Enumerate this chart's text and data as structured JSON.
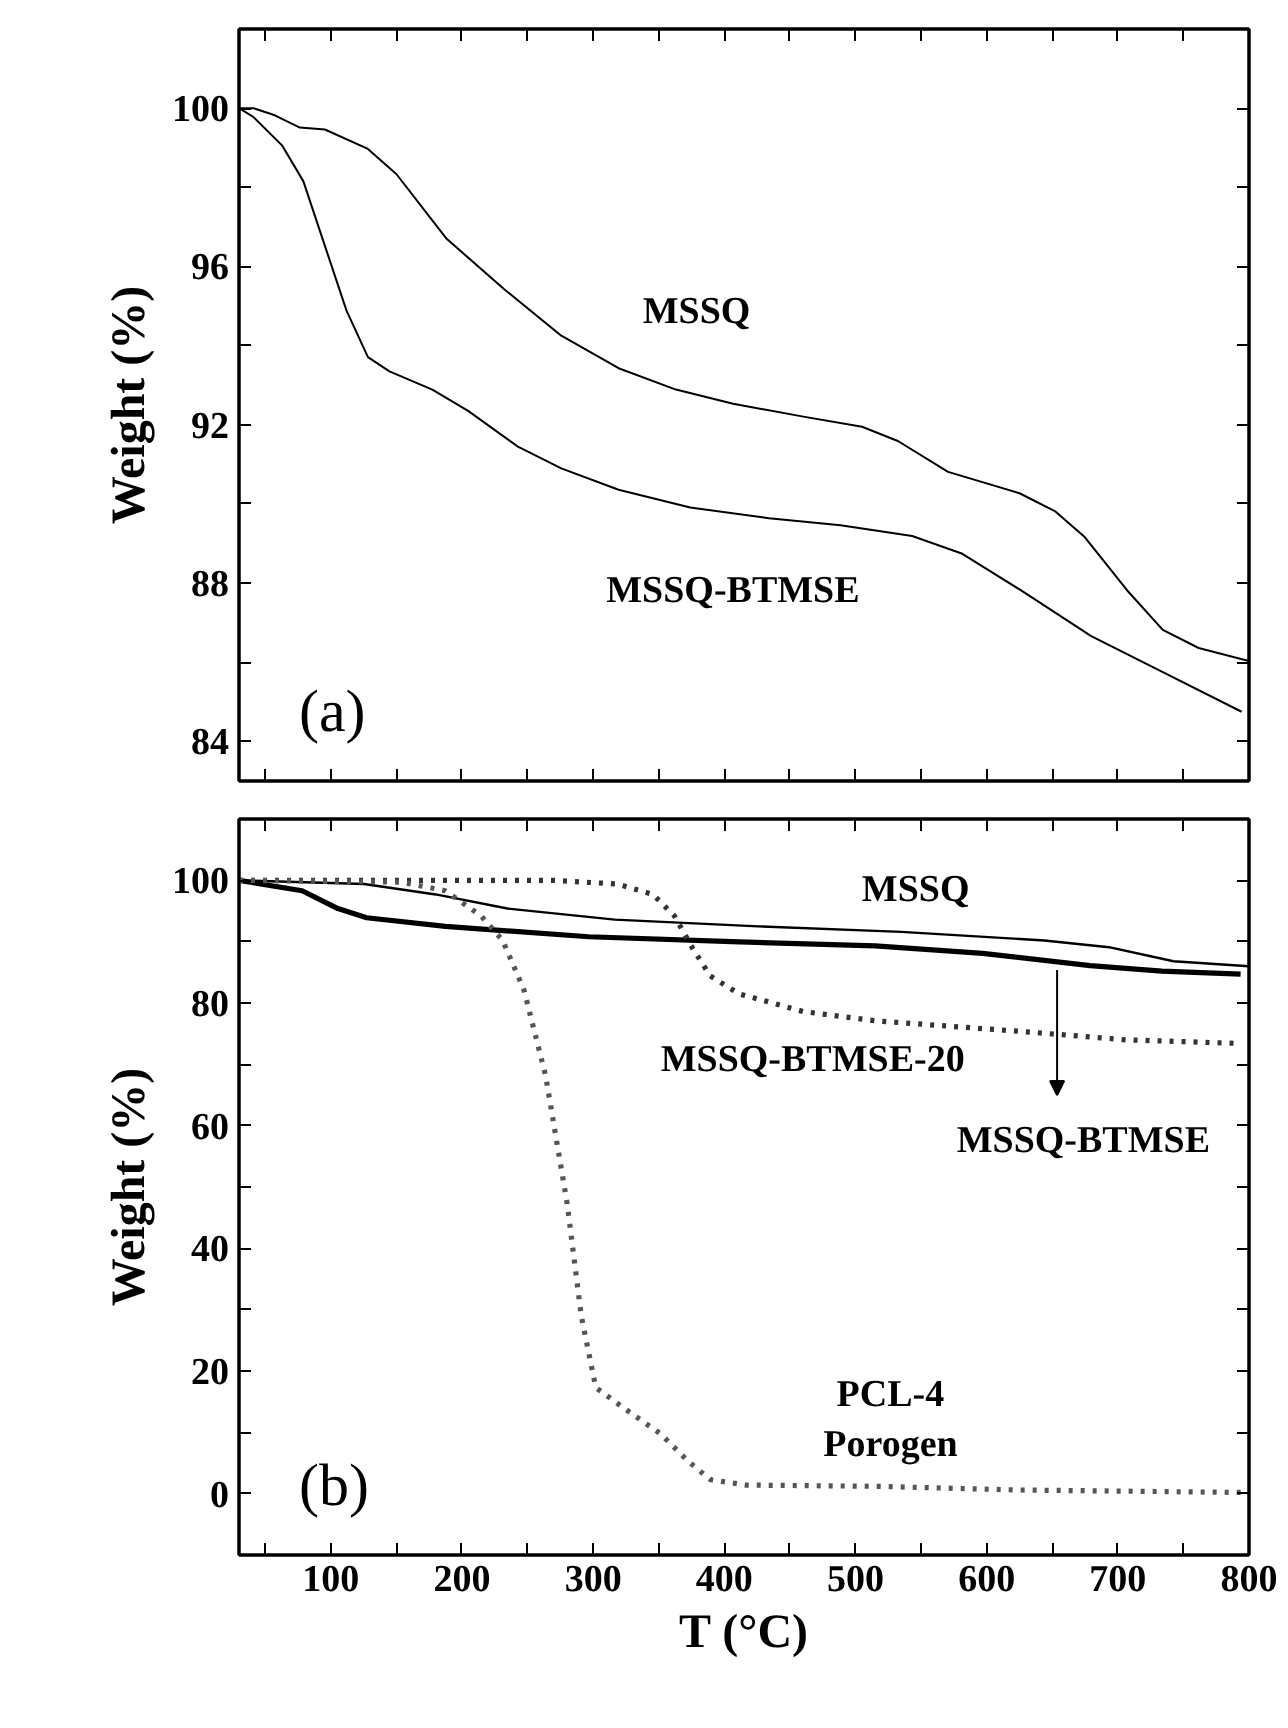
{
  "chart_data": [
    {
      "type": "line",
      "ylabel": "Weight (%)",
      "xlim": [
        30,
        800
      ],
      "ylim": [
        83,
        102
      ],
      "xticks": [
        {
          "value": 50,
          "label": null
        },
        {
          "value": 100,
          "label": null
        },
        {
          "value": 150,
          "label": null
        },
        {
          "value": 200,
          "label": null
        },
        {
          "value": 250,
          "label": null
        },
        {
          "value": 300,
          "label": null
        },
        {
          "value": 350,
          "label": null
        },
        {
          "value": 400,
          "label": null
        },
        {
          "value": 450,
          "label": null
        },
        {
          "value": 500,
          "label": null
        },
        {
          "value": 550,
          "label": null
        },
        {
          "value": 600,
          "label": null
        },
        {
          "value": 650,
          "label": null
        },
        {
          "value": 700,
          "label": null
        },
        {
          "value": 750,
          "label": null
        },
        {
          "value": 800,
          "label": null
        }
      ],
      "yticks": [
        84,
        {
          "value": 86,
          "label": null
        },
        88,
        {
          "value": 90,
          "label": null
        },
        92,
        {
          "value": 94,
          "label": null
        },
        96,
        {
          "value": 98,
          "label": null
        },
        100
      ],
      "tick_labels": "y",
      "grid": false,
      "marker": "none",
      "series": [
        {
          "color": "#000000",
          "line_style": "solid",
          "x": [
            30,
            40.9,
            57.3,
            76.4,
            95.5,
            128.3,
            150.1,
            188.3,
            232,
            275.7,
            319.4,
            363.1,
            406.7,
            461.3,
            505,
            532.3,
            570.6,
            625.1,
            652.4,
            674.3,
            707,
            734.3,
            761.6,
            800
          ],
          "values": [
            100,
            100,
            99.82,
            99.51,
            99.46,
            98.97,
            98.33,
            96.7,
            95.43,
            94.25,
            93.43,
            92.89,
            92.53,
            92.2,
            91.95,
            91.59,
            90.81,
            90.27,
            89.81,
            89.18,
            87.82,
            86.82,
            86.36,
            86.03
          ]
        },
        {
          "color": "#000000",
          "line_style": "solid",
          "x": [
            30,
            40.9,
            62.8,
            79.1,
            95.5,
            111.9,
            128.3,
            144.7,
            177.4,
            204.7,
            243,
            275.7,
            319.4,
            374,
            434,
            488.6,
            543.2,
            581.5,
            625.1,
            679.7,
            734.3,
            794.4
          ],
          "values": [
            100,
            99.78,
            99.06,
            98.15,
            96.52,
            94.89,
            93.71,
            93.35,
            92.89,
            92.35,
            91.44,
            90.9,
            90.36,
            89.91,
            89.64,
            89.46,
            89.19,
            88.74,
            87.84,
            86.66,
            85.75,
            84.75
          ]
        }
      ],
      "annotations": [
        "MSSQ",
        "MSSQ-BTMSE",
        "(a)"
      ]
    },
    {
      "type": "line",
      "xlabel": "T (°C)",
      "ylabel": "Weight (%)",
      "xlim": [
        30,
        800
      ],
      "ylim": [
        -10,
        110
      ],
      "xticks": [
        {
          "value": 50,
          "label": null
        },
        100,
        {
          "value": 150,
          "label": null
        },
        200,
        {
          "value": 250,
          "label": null
        },
        300,
        {
          "value": 350,
          "label": null
        },
        400,
        {
          "value": 450,
          "label": null
        },
        500,
        {
          "value": 550,
          "label": null
        },
        600,
        {
          "value": 650,
          "label": null
        },
        700,
        {
          "value": 750,
          "label": null
        },
        800
      ],
      "yticks": [
        0,
        {
          "value": 10,
          "label": null
        },
        20,
        {
          "value": 30,
          "label": null
        },
        40,
        {
          "value": 50,
          "label": null
        },
        60,
        {
          "value": 70,
          "label": null
        },
        80,
        {
          "value": 90,
          "label": null
        },
        100
      ],
      "grid": false,
      "marker": "none",
      "series": [
        {
          "color": "#000000",
          "line_style": "solid",
          "x": [
            30,
            125.4,
            180,
            234.6,
            316.5,
            425.7,
            534.9,
            644,
            693.2,
            742.4,
            800
          ],
          "values": [
            100,
            99.4,
            97.7,
            95.4,
            93.6,
            92.5,
            91.6,
            90.2,
            89.1,
            86.8,
            86.0
          ]
        },
        {
          "color": "#000000",
          "line_style": "solid",
          "x": [
            30,
            78.1,
            105.4,
            127.3,
            187.4,
            296.6,
            405.8,
            515,
            597,
            678.9,
            733.5,
            793.6
          ],
          "values": [
            100,
            98.3,
            95.4,
            93.9,
            92.5,
            90.8,
            90.0,
            89.3,
            88.1,
            86.1,
            85.2,
            84.7
          ]
        },
        {
          "color": "#333333",
          "line_style": "dotted",
          "x": [
            30,
            132.6,
            269.1,
            318.3,
            345.6,
            362,
            375.6,
            389.3,
            411.2,
            460.3,
            514.9,
            624.1,
            706,
            793.6
          ],
          "values": [
            100,
            100,
            100,
            99.4,
            97.7,
            94.2,
            89.0,
            84.4,
            81.5,
            78.6,
            77.1,
            75.4,
            74.0,
            73.4
          ]
        },
        {
          "color": "#555555",
          "line_style": "dotted",
          "x": [
            30,
            154.5,
            187.3,
            214.6,
            231,
            247.3,
            263.7,
            280.1,
            291,
            302,
            323.8,
            351.1,
            372.9,
            389.3,
            416.6,
            514.9,
            624.1,
            793.6
          ],
          "values": [
            100,
            99.7,
            98.3,
            94.2,
            90.2,
            82.1,
            68.2,
            47.4,
            28.9,
            17.3,
            13.9,
            9.8,
            5.2,
            2.3,
            1.4,
            1.2,
            0.6,
            0.2
          ]
        }
      ],
      "annotations": [
        "MSSQ",
        "MSSQ-BTMSE-20",
        "MSSQ-BTMSE",
        "PCL-4\nPorogen",
        "(b)"
      ]
    }
  ]
}
